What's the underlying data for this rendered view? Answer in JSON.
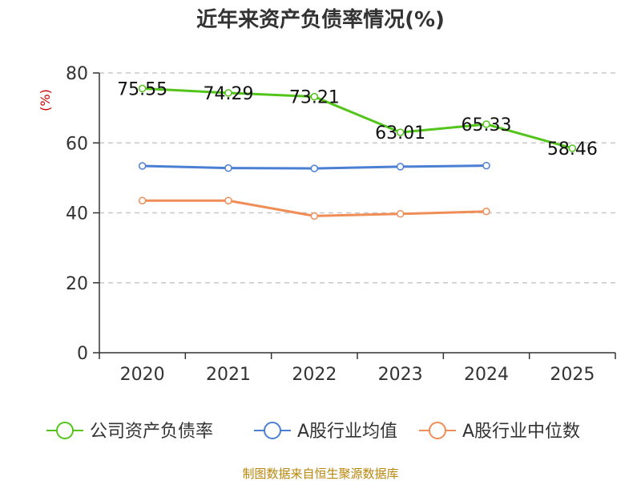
{
  "chart_data": {
    "type": "line",
    "title": "近年来资产负债率情况(%)",
    "ylabel": "(%)",
    "xlabel": "",
    "categories": [
      "2020",
      "2021",
      "2022",
      "2023",
      "2024",
      "2025"
    ],
    "ylim": [
      0,
      80
    ],
    "yticks": [
      0,
      20,
      40,
      60,
      80
    ],
    "grid": true,
    "legend_position": "bottom",
    "series": [
      {
        "name": "公司资产负债率",
        "color": "#52c41a",
        "values": [
          75.55,
          74.29,
          73.21,
          63.01,
          65.33,
          58.46
        ],
        "labels": [
          "75.55",
          "74.29",
          "73.21",
          "63.01",
          "65.33",
          "58.46"
        ]
      },
      {
        "name": "A股行业均值",
        "color": "#4a7fd4",
        "values": [
          53.4,
          52.8,
          52.7,
          53.2,
          53.5,
          null
        ]
      },
      {
        "name": "A股行业中位数",
        "color": "#f08c55",
        "values": [
          43.5,
          43.5,
          39.1,
          39.7,
          40.4,
          null
        ]
      }
    ]
  },
  "source": "制图数据来自恒生聚源数据库"
}
